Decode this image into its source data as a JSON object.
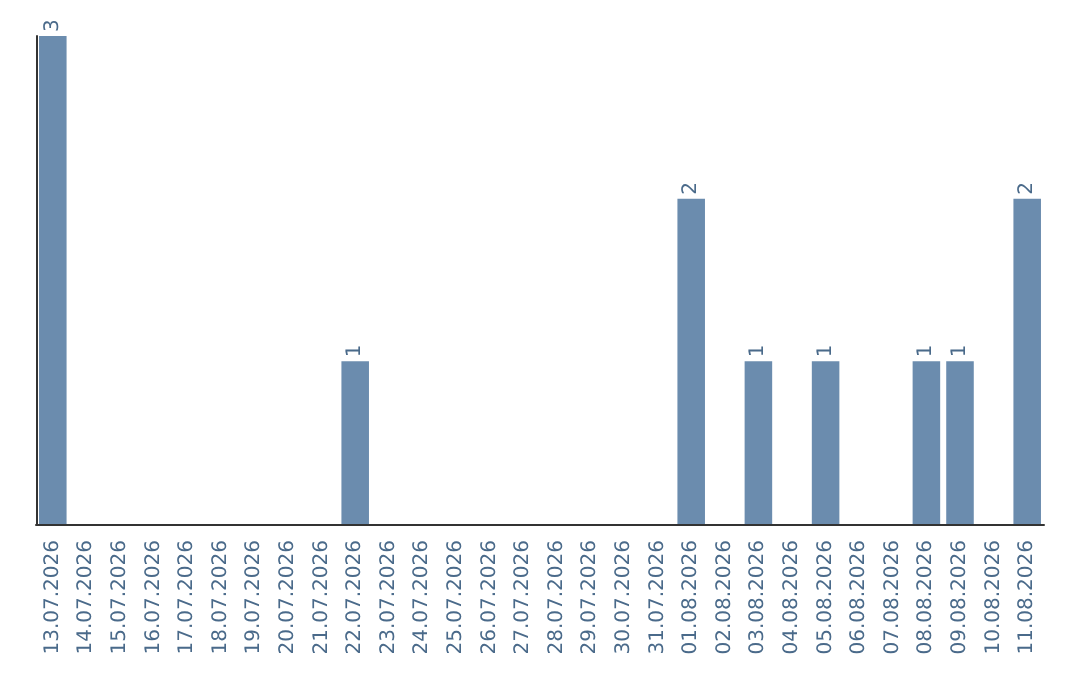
{
  "chart_data": {
    "type": "bar",
    "categories": [
      "13.07.2026",
      "14.07.2026",
      "15.07.2026",
      "16.07.2026",
      "17.07.2026",
      "18.07.2026",
      "19.07.2026",
      "20.07.2026",
      "21.07.2026",
      "22.07.2026",
      "23.07.2026",
      "24.07.2026",
      "25.07.2026",
      "26.07.2026",
      "27.07.2026",
      "28.07.2026",
      "29.07.2026",
      "30.07.2026",
      "31.07.2026",
      "01.08.2026",
      "02.08.2026",
      "03.08.2026",
      "04.08.2026",
      "05.08.2026",
      "06.08.2026",
      "07.08.2026",
      "08.08.2026",
      "09.08.2026",
      "10.08.2026",
      "11.08.2026"
    ],
    "values": [
      3,
      0,
      0,
      0,
      0,
      0,
      0,
      0,
      0,
      1,
      0,
      0,
      0,
      0,
      0,
      0,
      0,
      0,
      0,
      2,
      0,
      1,
      0,
      1,
      0,
      0,
      1,
      1,
      0,
      2
    ],
    "value_labels": [
      "3",
      null,
      null,
      null,
      null,
      null,
      null,
      null,
      null,
      "1",
      null,
      null,
      null,
      null,
      null,
      null,
      null,
      null,
      null,
      "2",
      null,
      "1",
      null,
      "1",
      null,
      null,
      "1",
      "1",
      null,
      "2"
    ],
    "color": "#6b8cae",
    "tick_labels": "x"
  }
}
